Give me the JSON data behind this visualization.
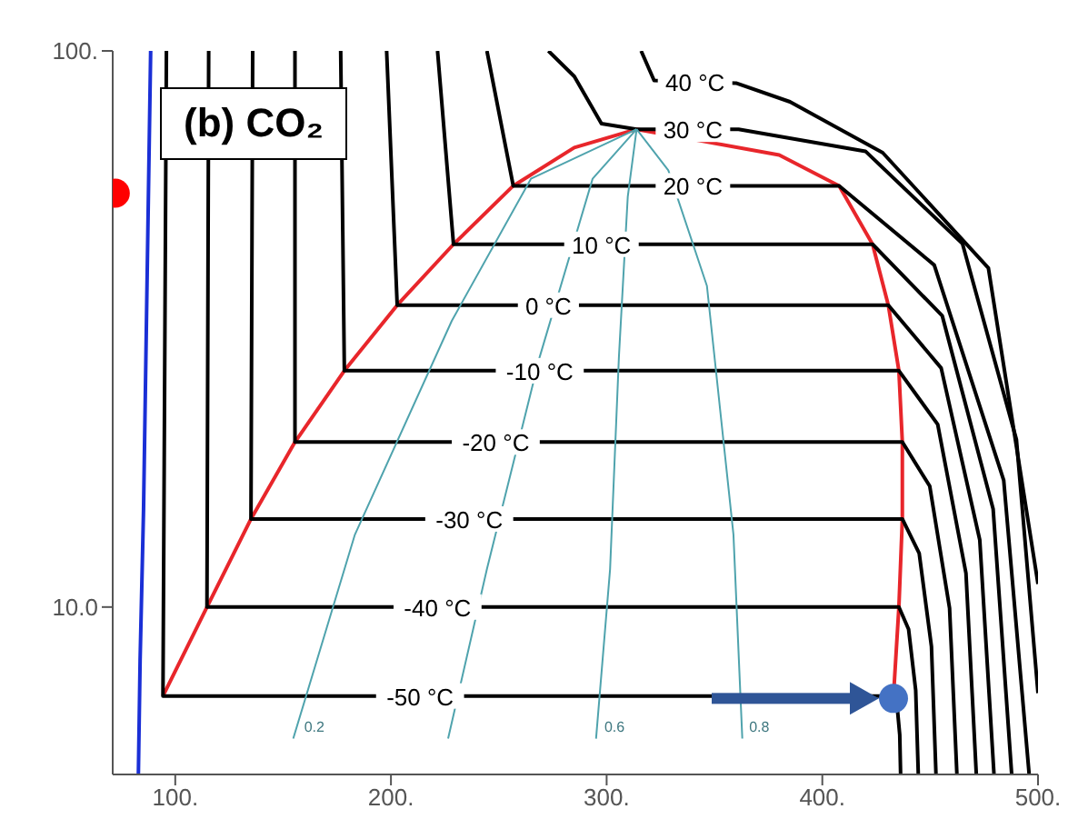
{
  "chart_data": {
    "type": "line",
    "title": "(b) CO₂",
    "xlim": [
      71,
      500
    ],
    "xticks": [
      {
        "value": 100,
        "label": "100."
      },
      {
        "value": 200,
        "label": "200."
      },
      {
        "value": 300,
        "label": "300."
      },
      {
        "value": 400,
        "label": "400."
      },
      {
        "value": 500,
        "label": "500."
      }
    ],
    "ylim": [
      5,
      100
    ],
    "yticks": [
      {
        "value": 10,
        "label": "10.0"
      },
      {
        "value": 100,
        "label": "100."
      }
    ],
    "log": "y",
    "grid": false,
    "series": [
      {
        "color": "#e8262b",
        "x": [
          94.3,
          114.7,
          135.1,
          155.5,
          178.4,
          202.9,
          229,
          256.7,
          285,
          313.9,
          380,
          407.8,
          423.3,
          430.6,
          435.5,
          437.1,
          437.1,
          435.5,
          433
        ],
        "values": [
          6.92,
          10,
          14.4,
          19.8,
          26.6,
          34.9,
          44.9,
          57.2,
          67,
          72.3,
          65,
          57.2,
          44.9,
          34.9,
          26.6,
          19.8,
          14.4,
          10,
          6.92
        ]
      },
      {
        "color": "#000000",
        "x": [
          95.9,
          94.3,
          433,
          434.7,
          435.9,
          436.3
        ],
        "values": [
          100,
          6.92,
          6.92,
          6.62,
          5.89,
          5
        ]
      },
      {
        "color": "#000000",
        "x": [
          115.5,
          114.7,
          435.5,
          440,
          443.3,
          444.5
        ],
        "values": [
          100,
          10,
          10,
          9.12,
          7.08,
          5
        ]
      },
      {
        "color": "#000000",
        "x": [
          135.9,
          135.1,
          437.1,
          444.9,
          450.6,
          452.7
        ],
        "values": [
          100,
          14.4,
          14.4,
          12.5,
          8.49,
          5
        ]
      },
      {
        "color": "#000000",
        "x": [
          155.5,
          155.5,
          437.1,
          449.8,
          459,
          462.4
        ],
        "values": [
          100,
          19.8,
          19.8,
          16.5,
          9.95,
          5
        ]
      },
      {
        "color": "#000000",
        "x": [
          176.7,
          178.4,
          435.5,
          453.5,
          466.6,
          471.4
        ],
        "values": [
          100,
          26.6,
          26.6,
          21.3,
          11.5,
          5
        ]
      },
      {
        "color": "#000000",
        "x": [
          198,
          202.9,
          430.6,
          455.1,
          473,
          479.6
        ],
        "values": [
          100,
          34.9,
          34.9,
          26.9,
          13.2,
          5
        ]
      },
      {
        "color": "#000000",
        "x": [
          221.6,
          229,
          423.3,
          455.6,
          479.2,
          487.8
        ],
        "values": [
          100,
          44.9,
          44.9,
          33.4,
          15,
          5
        ]
      },
      {
        "color": "#000000",
        "x": [
          244.5,
          256.7,
          407.8,
          451.9,
          484.1,
          495.9
        ],
        "values": [
          100,
          57.2,
          57.2,
          41.2,
          16.9,
          5
        ]
      },
      {
        "color": "#000000",
        "x": [
          273,
          285,
          297.6,
          313.9,
          361.2,
          420,
          465,
          490,
          500
        ],
        "values": [
          100,
          90,
          74,
          72.3,
          72.3,
          66,
          45,
          20,
          7
        ]
      },
      {
        "color": "#000000",
        "x": [
          316,
          322,
          360,
          385,
          428,
          477,
          500
        ],
        "values": [
          100,
          88.5,
          87.5,
          81,
          65.6,
          40.7,
          11
        ]
      },
      {
        "color": "#4fa3ad",
        "x": [
          313.9,
          264.9,
          228.2,
          183.3,
          154.7
        ],
        "values": [
          72.3,
          58.9,
          32.7,
          13.5,
          5.8
        ]
      },
      {
        "color": "#4fa3ad",
        "x": [
          313.9,
          293.5,
          269,
          244.5,
          226.5
        ],
        "values": [
          72.3,
          58.9,
          28.2,
          11.7,
          5.8
        ]
      },
      {
        "color": "#4fa3ad",
        "x": [
          313.9,
          309.8,
          305.7,
          301.6,
          295.1
        ],
        "values": [
          72.3,
          54.7,
          28.2,
          11.7,
          5.8
        ]
      },
      {
        "color": "#4fa3ad",
        "x": [
          313.9,
          328.6,
          346.5,
          358.8,
          362.9
        ],
        "values": [
          72.3,
          61,
          37.8,
          13.5,
          5.8
        ]
      },
      {
        "color": "#1a2fd6",
        "x": [
          88.6,
          87,
          85.3,
          83.7,
          82.9
        ],
        "values": [
          100,
          40,
          15,
          8,
          5
        ]
      },
      {
        "type": "scatter",
        "marker": "circle",
        "color": "#4472c4",
        "x": [
          433
        ],
        "values": [
          6.85
        ]
      },
      {
        "type": "scatter",
        "marker": "circle",
        "color": "#ff0000",
        "x": [
          72.2
        ],
        "values": [
          55.5
        ]
      }
    ],
    "annotations": [
      {
        "text": "-50 °C",
        "x": 213.5,
        "y": 6.92
      },
      {
        "text": "-40 °C",
        "x": 221.6,
        "y": 10
      },
      {
        "text": "-30 °C",
        "x": 236.3,
        "y": 14.4
      },
      {
        "text": "-20 °C",
        "x": 248.6,
        "y": 19.8
      },
      {
        "text": "-10 °C",
        "x": 269,
        "y": 26.6
      },
      {
        "text": "0 °C",
        "x": 273,
        "y": 34.9
      },
      {
        "text": "10 °C",
        "x": 297.6,
        "y": 44.9
      },
      {
        "text": "20 °C",
        "x": 340,
        "y": 57.2
      },
      {
        "text": "30 °C",
        "x": 340,
        "y": 72.3
      },
      {
        "text": "40 °C",
        "x": 341,
        "y": 88
      },
      {
        "text": "0.2",
        "x": 156.4,
        "y": 6.1
      },
      {
        "text": "0.6",
        "x": 295.6,
        "y": 6.1
      },
      {
        "text": "0.8",
        "x": 362.7,
        "y": 6.1
      }
    ]
  }
}
